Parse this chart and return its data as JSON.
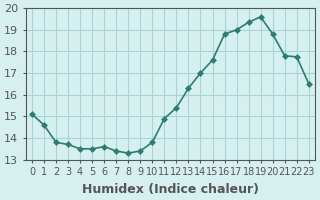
{
  "x": [
    0,
    1,
    2,
    3,
    4,
    5,
    6,
    7,
    8,
    9,
    10,
    11,
    12,
    13,
    14,
    15,
    16,
    17,
    18,
    19,
    20,
    21,
    22,
    23
  ],
  "y": [
    15.1,
    14.6,
    13.8,
    13.7,
    13.5,
    13.5,
    13.6,
    13.4,
    13.3,
    13.4,
    13.8,
    14.9,
    15.4,
    16.3,
    17.0,
    17.6,
    18.8,
    19.0,
    19.35,
    19.6,
    18.8,
    17.8,
    17.75,
    16.5
  ],
  "xlabel": "Humidex (Indice chaleur)",
  "ylabel": "",
  "xlim": [
    -0.5,
    23.5
  ],
  "ylim": [
    13.0,
    20.0
  ],
  "yticks": [
    13,
    14,
    15,
    16,
    17,
    18,
    19,
    20
  ],
  "xtick_labels": [
    "0",
    "1",
    "2",
    "3",
    "4",
    "5",
    "6",
    "7",
    "8",
    "9",
    "10",
    "11",
    "12",
    "13",
    "14",
    "15",
    "16",
    "17",
    "18",
    "19",
    "20",
    "21",
    "22",
    "23"
  ],
  "line_color": "#2e7d6e",
  "marker_color": "#2e7d6e",
  "bg_color": "#d6f0f0",
  "grid_color": "#aad4d4",
  "axis_color": "#555555",
  "xlabel_fontsize": 9,
  "tick_fontsize": 8
}
